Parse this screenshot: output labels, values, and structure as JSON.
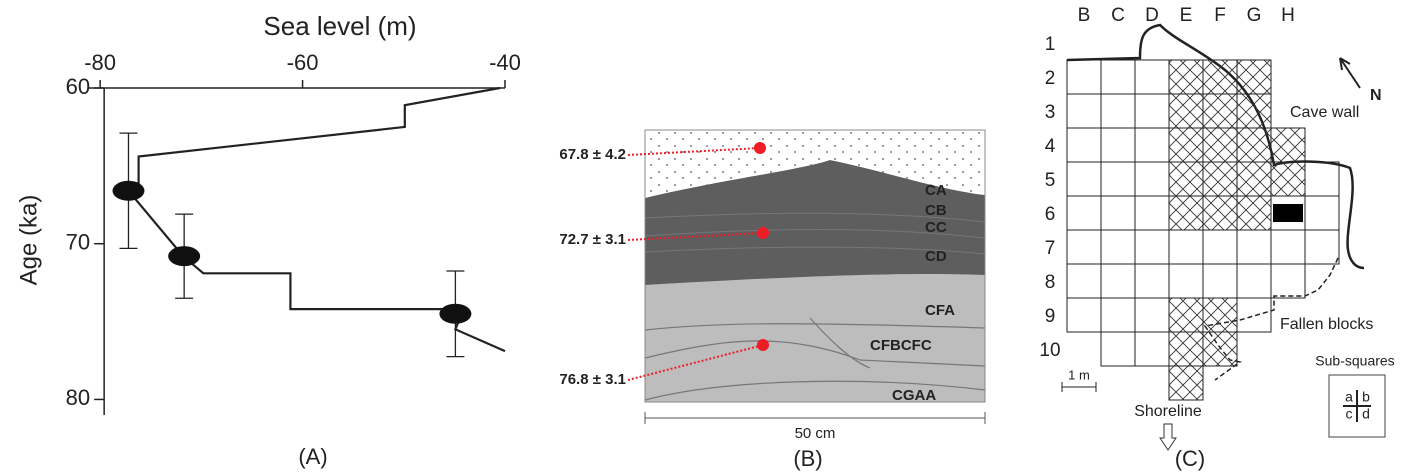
{
  "chart_data": {
    "type": "line",
    "xlabel": "Sea level (m)",
    "ylabel": "Age (ka)",
    "panel_label": "(A)",
    "xlim": [
      -81.2,
      -40
    ],
    "ylim": [
      60,
      81
    ],
    "xticks": [
      -80,
      -60,
      -40
    ],
    "yticks": [
      60,
      70,
      80
    ],
    "y_inverted": true,
    "color": "#222222",
    "x": [
      -40.5,
      -49.9,
      -49.9,
      -76.2,
      -76.2,
      -77.2,
      -71.8,
      -69.8,
      -61.2,
      -61.2,
      -44.1,
      -44.9,
      -40
    ],
    "values": [
      60,
      61.1,
      62.5,
      64.4,
      66.4,
      66.6,
      70.8,
      71.9,
      71.9,
      74.2,
      74.2,
      75.5,
      76.9
    ],
    "points": {
      "x": [
        -77.2,
        -71.7,
        -44.9
      ],
      "values": [
        66.6,
        70.8,
        74.5
      ],
      "errors": [
        3.7,
        2.7,
        2.75
      ]
    }
  },
  "section": {
    "panel_label": "(B)",
    "scale": "50 cm",
    "dates": [
      "67.8 ±  4.2",
      "72.7 ±  3.1",
      "76.8 ± 3.1"
    ],
    "layers": [
      "CA",
      "CB",
      "CC",
      "CD",
      "CFA",
      "CFBCFC",
      "CGAA"
    ]
  },
  "plan": {
    "panel_label": "(C)",
    "columns": [
      "B",
      "C",
      "D",
      "E",
      "F",
      "G",
      "H"
    ],
    "rows": [
      "1",
      "2",
      "3",
      "4",
      "5",
      "6",
      "7",
      "8",
      "9",
      "10"
    ],
    "cave_wall": "Cave wall",
    "north": "N",
    "fallen_blocks": "Fallen blocks",
    "scale": "1 m",
    "shoreline": "Shoreline",
    "sub_squares": {
      "title": "Sub-squares",
      "labels": [
        "a",
        "b",
        "c",
        "d"
      ]
    }
  }
}
